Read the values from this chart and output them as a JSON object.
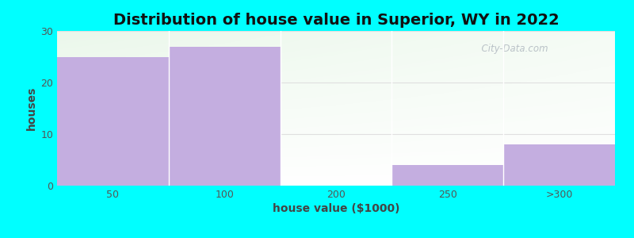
{
  "title": "Distribution of house value in Superior, WY in 2022",
  "xlabel": "house value ($1000)",
  "ylabel": "houses",
  "categories": [
    "50",
    "100",
    "200",
    "250",
    ">300"
  ],
  "values": [
    25,
    27,
    0,
    4,
    8
  ],
  "bar_color": "#c4aee0",
  "bar_edgecolor": "none",
  "ylim": [
    0,
    30
  ],
  "yticks": [
    0,
    10,
    20,
    30
  ],
  "fig_bg_color": "#00ffff",
  "title_fontsize": 14,
  "axis_label_fontsize": 10,
  "tick_fontsize": 9,
  "watermark_text": "  City-Data.com",
  "bar_width": 1.0,
  "xlim": [
    -0.5,
    4.5
  ],
  "grid_color": "#e0e0e0",
  "tick_color": "#555555",
  "label_color": "#444444",
  "title_color": "#111111"
}
